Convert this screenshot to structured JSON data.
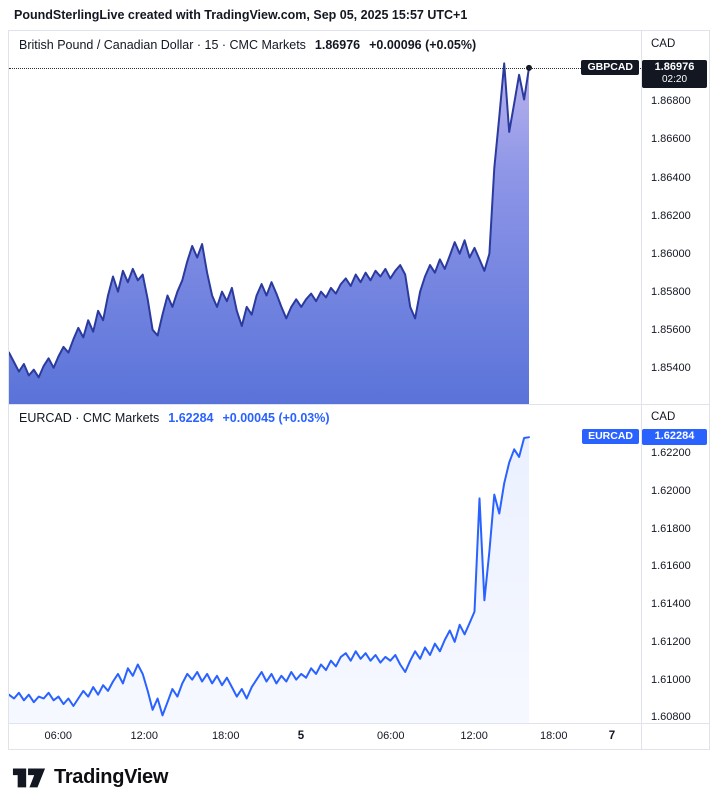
{
  "header": {
    "attribution": "PoundSterlingLive created with TradingView.com, Sep 05, 2025 15:57 UTC+1"
  },
  "footer": {
    "brand": "TradingView"
  },
  "colors": {
    "accent_blue": "#2962FF",
    "flag_dark": "#131722",
    "separator": "#e0e3eb",
    "background": "#ffffff"
  },
  "time_axis": {
    "ticks": [
      {
        "label": "06:00",
        "x": 0.078,
        "major": false
      },
      {
        "label": "12:00",
        "x": 0.214,
        "major": false
      },
      {
        "label": "18:00",
        "x": 0.343,
        "major": false
      },
      {
        "label": "5",
        "x": 0.462,
        "major": true
      },
      {
        "label": "06:00",
        "x": 0.604,
        "major": false
      },
      {
        "label": "12:00",
        "x": 0.736,
        "major": false
      },
      {
        "label": "18:00",
        "x": 0.862,
        "major": false
      },
      {
        "label": "7",
        "x": 0.954,
        "major": true
      }
    ]
  },
  "chart_data": [
    {
      "type": "area",
      "symbol": "GBPCAD",
      "title": "British Pound / Canadian Dollar · 15 · CMC Markets",
      "last_price": 1.86976,
      "last_price_label": "1.86976",
      "change_label": "+0.00096 (+0.05%)",
      "countdown": "02:20",
      "currency": "CAD",
      "interval": "15",
      "broker": "CMC Markets",
      "ylim": [
        1.8521,
        1.8717
      ],
      "x_end_frac": 0.8228,
      "line_color": "#2b3a9e",
      "line_width": 2,
      "flag_color": "#131722",
      "fill_stops": [
        {
          "offset": "0%",
          "color": "#c6bcef"
        },
        {
          "offset": "38%",
          "color": "#8e96e7"
        },
        {
          "offset": "100%",
          "color": "#5a73d9"
        }
      ],
      "y_ticks": [
        {
          "v": 1.868,
          "label": "1.86800"
        },
        {
          "v": 1.866,
          "label": "1.86600"
        },
        {
          "v": 1.864,
          "label": "1.86400"
        },
        {
          "v": 1.862,
          "label": "1.86200"
        },
        {
          "v": 1.86,
          "label": "1.86000"
        },
        {
          "v": 1.858,
          "label": "1.85800"
        },
        {
          "v": 1.856,
          "label": "1.85600"
        },
        {
          "v": 1.854,
          "label": "1.85400"
        }
      ],
      "values": [
        1.8548,
        1.8543,
        1.8538,
        1.8542,
        1.8536,
        1.8539,
        1.8535,
        1.8541,
        1.8545,
        1.854,
        1.8546,
        1.8551,
        1.8548,
        1.8555,
        1.8561,
        1.8556,
        1.8565,
        1.8559,
        1.857,
        1.8565,
        1.8578,
        1.8588,
        1.858,
        1.8591,
        1.8585,
        1.8592,
        1.8586,
        1.8589,
        1.8576,
        1.856,
        1.8557,
        1.8568,
        1.8578,
        1.8572,
        1.858,
        1.8586,
        1.8596,
        1.8604,
        1.8598,
        1.8605,
        1.859,
        1.8578,
        1.8572,
        1.858,
        1.8575,
        1.8582,
        1.857,
        1.8562,
        1.8572,
        1.8568,
        1.8578,
        1.8584,
        1.8578,
        1.8585,
        1.8579,
        1.8572,
        1.8566,
        1.8572,
        1.8576,
        1.8572,
        1.8576,
        1.8579,
        1.8575,
        1.858,
        1.8577,
        1.8582,
        1.8579,
        1.8584,
        1.8587,
        1.8583,
        1.8589,
        1.8585,
        1.859,
        1.8586,
        1.8591,
        1.8588,
        1.8592,
        1.8587,
        1.8591,
        1.8594,
        1.8589,
        1.8572,
        1.8566,
        1.858,
        1.8588,
        1.8594,
        1.859,
        1.8597,
        1.8592,
        1.8599,
        1.8606,
        1.86,
        1.8607,
        1.8598,
        1.8603,
        1.8597,
        1.8591,
        1.86,
        1.8645,
        1.8672,
        1.87,
        1.8664,
        1.8679,
        1.8694,
        1.8681,
        1.86976
      ]
    },
    {
      "type": "line",
      "symbol": "EURCAD",
      "title": "EURCAD · CMC Markets",
      "last_price": 1.62284,
      "last_price_label": "1.62284",
      "change_label": "+0.00045 (+0.03%)",
      "currency": "CAD",
      "broker": "CMC Markets",
      "ylim": [
        1.6077,
        1.6246
      ],
      "x_end_frac": 0.8228,
      "line_color": "#2962FF",
      "line_width": 2,
      "flag_color": "#2962FF",
      "fill_stops": [
        {
          "offset": "0%",
          "color": "#2962ff",
          "opacity": 0.1
        },
        {
          "offset": "100%",
          "color": "#2962ff",
          "opacity": 0.04
        }
      ],
      "y_ticks": [
        {
          "v": 1.622,
          "label": "1.62200"
        },
        {
          "v": 1.62,
          "label": "1.62000"
        },
        {
          "v": 1.618,
          "label": "1.61800"
        },
        {
          "v": 1.616,
          "label": "1.61600"
        },
        {
          "v": 1.614,
          "label": "1.61400"
        },
        {
          "v": 1.612,
          "label": "1.61200"
        },
        {
          "v": 1.61,
          "label": "1.61000"
        },
        {
          "v": 1.608,
          "label": "1.60800"
        }
      ],
      "values": [
        1.6092,
        1.609,
        1.6093,
        1.6089,
        1.6092,
        1.6088,
        1.6091,
        1.609,
        1.6093,
        1.6089,
        1.6091,
        1.6087,
        1.609,
        1.6086,
        1.609,
        1.6094,
        1.6091,
        1.6096,
        1.6092,
        1.6097,
        1.6094,
        1.6099,
        1.6103,
        1.6098,
        1.6106,
        1.6102,
        1.6108,
        1.6103,
        1.6094,
        1.6084,
        1.609,
        1.6081,
        1.6088,
        1.6095,
        1.6091,
        1.6098,
        1.6103,
        1.61,
        1.6104,
        1.6099,
        1.6103,
        1.6098,
        1.6102,
        1.6097,
        1.6101,
        1.6096,
        1.6091,
        1.6095,
        1.609,
        1.6096,
        1.61,
        1.6104,
        1.6099,
        1.6103,
        1.6098,
        1.6102,
        1.6099,
        1.6104,
        1.61,
        1.6103,
        1.6101,
        1.6106,
        1.6103,
        1.6108,
        1.6105,
        1.611,
        1.6107,
        1.6112,
        1.6114,
        1.611,
        1.6115,
        1.6111,
        1.6114,
        1.611,
        1.6113,
        1.6109,
        1.6112,
        1.611,
        1.6113,
        1.6108,
        1.6104,
        1.611,
        1.6115,
        1.6111,
        1.6117,
        1.6113,
        1.6119,
        1.6115,
        1.6121,
        1.6126,
        1.612,
        1.6129,
        1.6124,
        1.613,
        1.6136,
        1.6196,
        1.6142,
        1.6168,
        1.6198,
        1.6188,
        1.6204,
        1.6215,
        1.6222,
        1.6218,
        1.6228,
        1.62284
      ]
    }
  ]
}
